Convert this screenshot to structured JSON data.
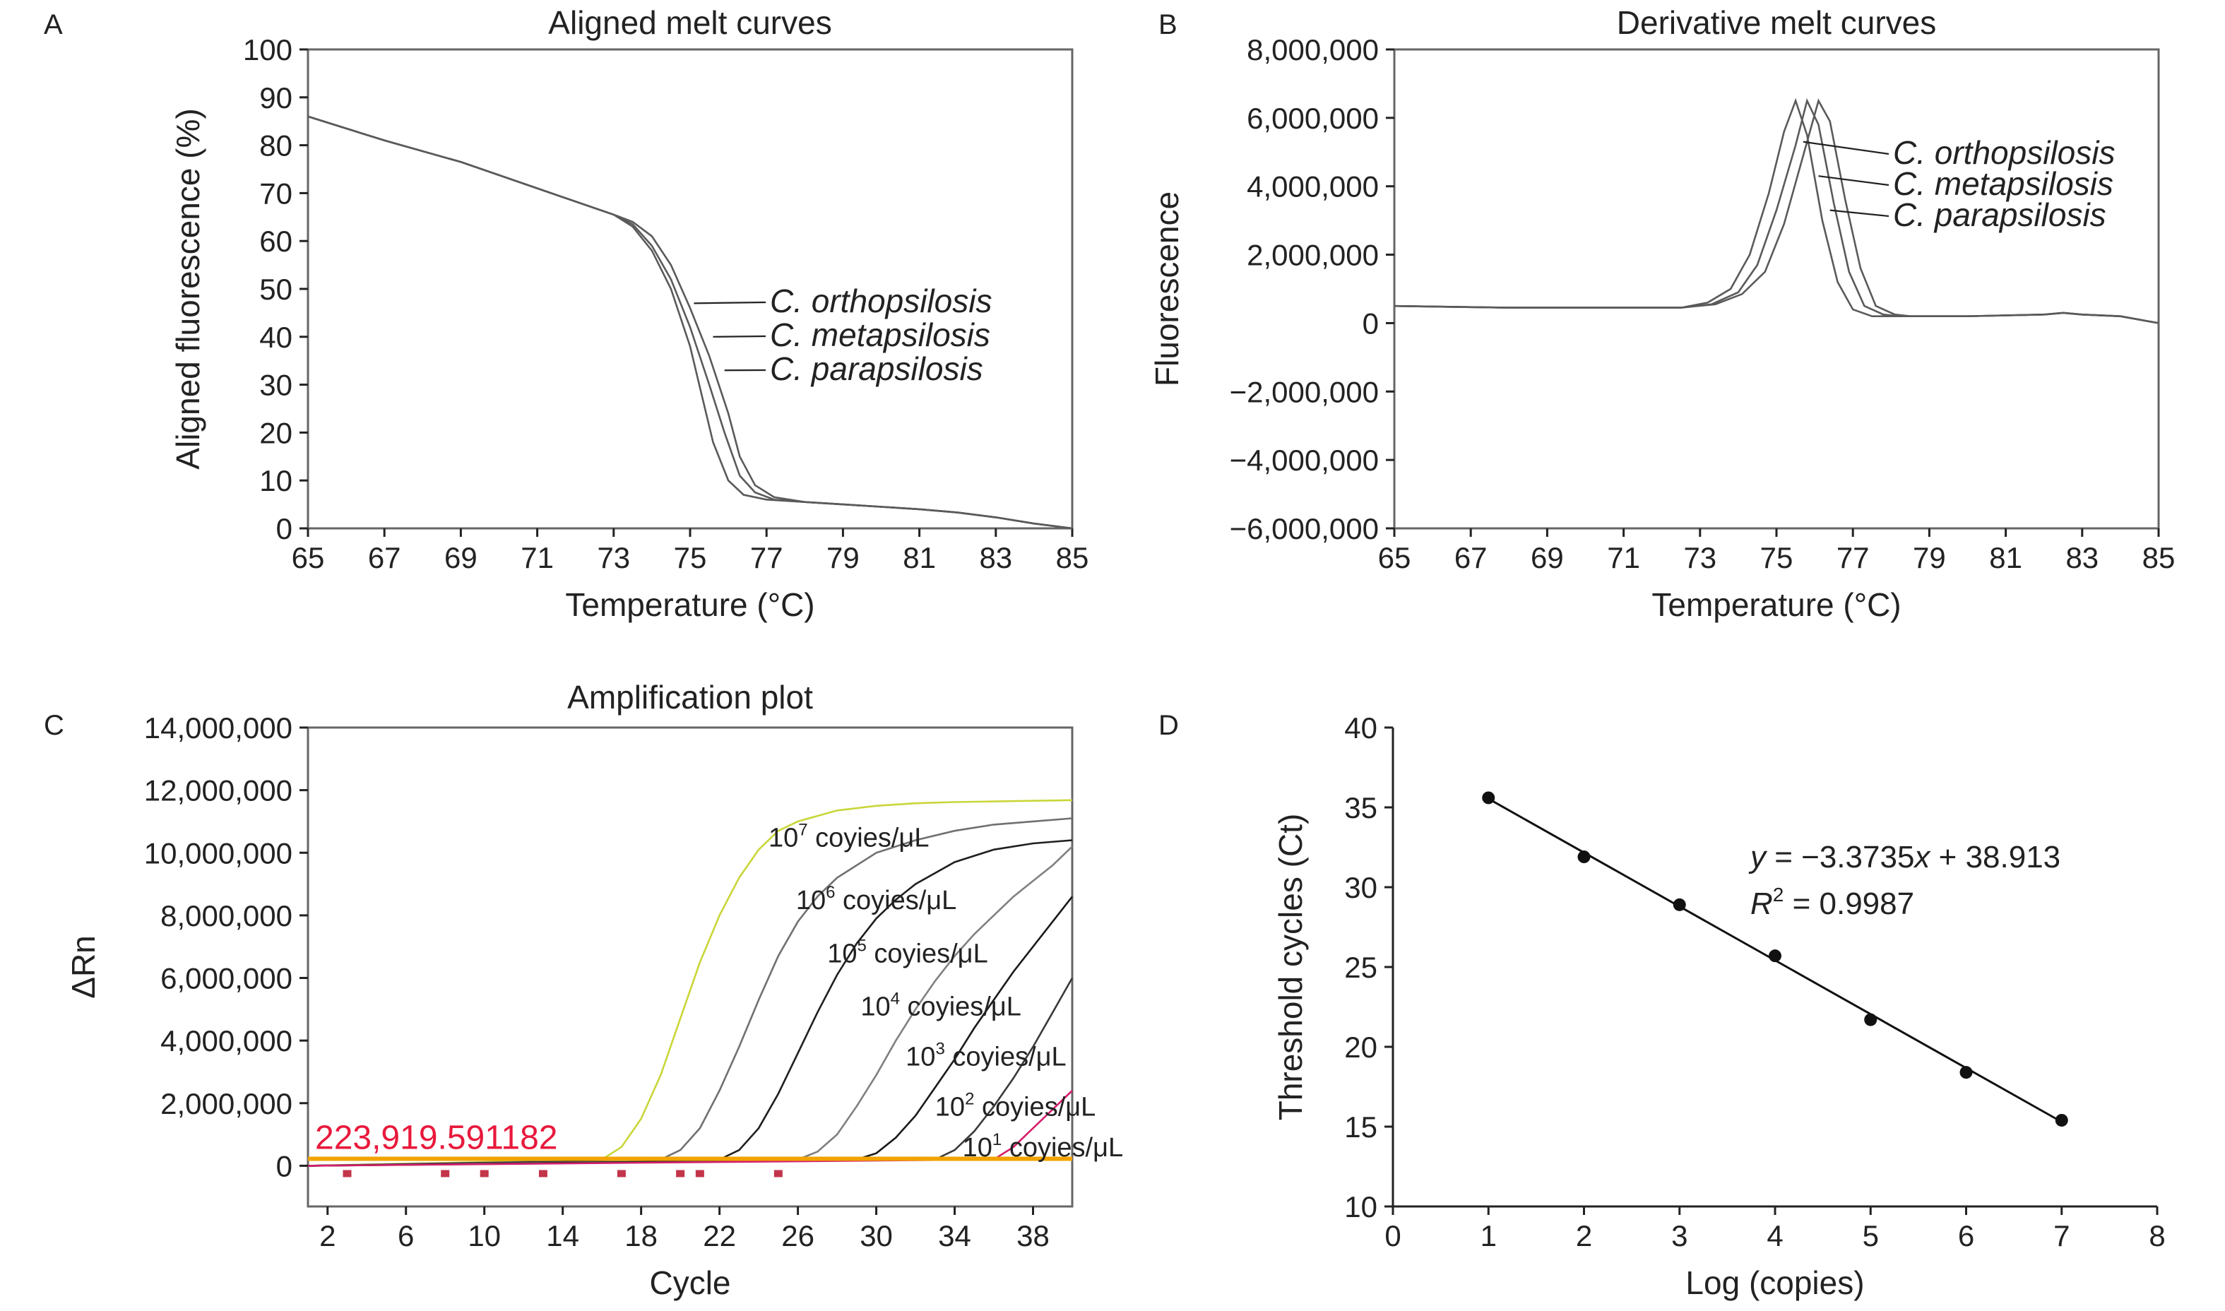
{
  "figure": {
    "panels": [
      {
        "letter": "A"
      },
      {
        "letter": "B"
      },
      {
        "letter": "C"
      },
      {
        "letter": "D"
      }
    ]
  },
  "chart_data": [
    {
      "panel": "A",
      "type": "line",
      "title": "Aligned melt curves",
      "xlabel": "Temperature (°C)",
      "ylabel": "Aligned fluorescence (%)",
      "xlim": [
        65,
        85
      ],
      "ylim": [
        0,
        100
      ],
      "xticks": [
        65,
        67,
        69,
        71,
        73,
        75,
        77,
        79,
        81,
        83,
        85
      ],
      "yticks": [
        0,
        10,
        20,
        30,
        40,
        50,
        60,
        70,
        80,
        90,
        100
      ],
      "grid": false,
      "line_color": "#5a5a5a",
      "series": [
        {
          "name": "C. orthopsilosis",
          "x": [
            65,
            67,
            69,
            71,
            73,
            73.5,
            74,
            74.5,
            75,
            75.3,
            75.6,
            76,
            76.4,
            77,
            78,
            79,
            80,
            81,
            82,
            83,
            84,
            85
          ],
          "y": [
            86,
            81,
            76.5,
            71,
            65.5,
            63,
            58,
            50,
            38,
            28,
            18,
            10,
            7,
            6,
            5.5,
            5,
            4.5,
            4,
            3.3,
            2.3,
            1,
            0
          ]
        },
        {
          "name": "C. metapsilosis",
          "x": [
            65,
            67,
            69,
            71,
            73,
            73.5,
            74,
            74.5,
            75,
            75.5,
            75.9,
            76.3,
            76.7,
            77.2,
            78,
            79,
            80,
            81,
            82,
            83,
            84,
            85
          ],
          "y": [
            86,
            81,
            76.5,
            71,
            65.5,
            63.5,
            59,
            52,
            42,
            30,
            20,
            11,
            7.5,
            6,
            5.5,
            5,
            4.5,
            4,
            3.3,
            2.3,
            1,
            0
          ]
        },
        {
          "name": "C. parapsilosis",
          "x": [
            65,
            67,
            69,
            71,
            73,
            73.5,
            74,
            74.5,
            75,
            75.5,
            76,
            76.3,
            76.7,
            77.2,
            78,
            79,
            80,
            81,
            82,
            83,
            84,
            85
          ],
          "y": [
            86,
            81,
            76.5,
            71,
            65.5,
            64,
            61,
            55,
            46,
            36,
            24,
            15,
            9,
            6.5,
            5.5,
            5,
            4.5,
            4,
            3.3,
            2.3,
            1,
            0
          ]
        }
      ],
      "annotations": [
        {
          "text": "C. orthopsilosis",
          "x": 75.1,
          "y": 47
        },
        {
          "text": "C. metapsilosis",
          "x": 75.6,
          "y": 40
        },
        {
          "text": "C. parapsilosis",
          "x": 75.9,
          "y": 33
        }
      ]
    },
    {
      "panel": "B",
      "type": "line",
      "title": "Derivative melt curves",
      "xlabel": "Temperature (°C)",
      "ylabel": "Fluorescence",
      "xlim": [
        65,
        85
      ],
      "ylim": [
        -6000000,
        8000000
      ],
      "xticks": [
        65,
        67,
        69,
        71,
        73,
        75,
        77,
        79,
        81,
        83,
        85
      ],
      "xtick_labels": [
        "65",
        "67",
        "69",
        "71",
        "73",
        "75",
        "77",
        "79",
        "81",
        "83",
        "85"
      ],
      "yticks": [
        -6000000,
        -4000000,
        -2000000,
        0,
        2000000,
        4000000,
        6000000,
        8000000
      ],
      "ytick_labels": [
        "−6,000,000",
        "−4,000,000",
        "−2,000,000",
        "0",
        "2,000,000",
        "4,000,000",
        "6,000,000",
        "8,000,000"
      ],
      "grid": false,
      "line_color": "#5a5a5a",
      "series": [
        {
          "name": "C. orthopsilosis",
          "x": [
            65,
            68,
            71,
            72.5,
            73.2,
            73.8,
            74.3,
            74.8,
            75.2,
            75.5,
            75.8,
            76.2,
            76.6,
            77,
            77.5,
            78,
            80,
            82,
            82.5,
            83,
            84,
            85
          ],
          "y": [
            500000,
            450000,
            450000,
            450000,
            600000,
            1000000,
            2000000,
            3800000,
            5600000,
            6500000,
            5500000,
            3000000,
            1200000,
            400000,
            200000,
            200000,
            200000,
            250000,
            300000,
            250000,
            200000,
            0
          ]
        },
        {
          "name": "C. metapsilosis",
          "x": [
            65,
            68,
            71,
            72.5,
            73.3,
            74,
            74.5,
            75,
            75.5,
            75.8,
            76.1,
            76.5,
            76.9,
            77.3,
            77.8,
            78.2,
            80,
            82,
            82.5,
            83,
            84,
            85
          ],
          "y": [
            500000,
            450000,
            450000,
            450000,
            550000,
            900000,
            1700000,
            3300000,
            5200000,
            6500000,
            5800000,
            3500000,
            1500000,
            500000,
            250000,
            200000,
            200000,
            250000,
            300000,
            250000,
            200000,
            0
          ]
        },
        {
          "name": "C. parapsilosis",
          "x": [
            65,
            68,
            71,
            72.5,
            73.4,
            74.1,
            74.7,
            75.2,
            75.7,
            76.1,
            76.4,
            76.8,
            77.2,
            77.6,
            78.1,
            78.5,
            80,
            82,
            82.5,
            83,
            84,
            85
          ],
          "y": [
            500000,
            450000,
            450000,
            450000,
            550000,
            850000,
            1500000,
            2900000,
            4900000,
            6500000,
            5900000,
            3600000,
            1600000,
            500000,
            250000,
            200000,
            200000,
            250000,
            300000,
            250000,
            200000,
            0
          ]
        }
      ],
      "annotations": [
        {
          "text": "C. orthopsilosis",
          "x": 75.7,
          "y": 5300000
        },
        {
          "text": "C. metapsilosis",
          "x": 76.1,
          "y": 4300000
        },
        {
          "text": "C. parapsilosis",
          "x": 76.4,
          "y": 3300000
        }
      ]
    },
    {
      "panel": "C",
      "type": "line",
      "title": "Amplification plot",
      "xlabel": "Cycle",
      "ylabel": "ΔRn",
      "xlim": [
        1,
        40
      ],
      "ylim": [
        -1300000,
        14000000
      ],
      "xticks": [
        2,
        6,
        10,
        14,
        18,
        22,
        26,
        30,
        34,
        38
      ],
      "yticks": [
        0,
        2000000,
        4000000,
        6000000,
        8000000,
        10000000,
        12000000,
        14000000
      ],
      "ytick_labels": [
        "0",
        "2,000,000",
        "4,000,000",
        "6,000,000",
        "8,000,000",
        "10,000,000",
        "12,000,000",
        "14,000,000"
      ],
      "grid": false,
      "threshold": {
        "value": 223919.591182,
        "label": "223,919.591182",
        "color": "#f2a300",
        "label_color": "#e8193c"
      },
      "baseline_markers_x": [
        3,
        8,
        10,
        13,
        17,
        20,
        21,
        25
      ],
      "series": [
        {
          "name": "10^7 coyies/μL",
          "color": "#c9d639",
          "x": [
            1,
            16,
            17,
            18,
            19,
            20,
            21,
            22,
            23,
            24,
            25,
            26,
            28,
            30,
            32,
            34,
            36,
            38,
            40
          ],
          "y": [
            0,
            200000,
            600000,
            1500000,
            2900000,
            4700000,
            6500000,
            8000000,
            9200000,
            10100000,
            10700000,
            11000000,
            11350000,
            11500000,
            11580000,
            11620000,
            11640000,
            11660000,
            11680000
          ]
        },
        {
          "name": "10^6 coyies/μL",
          "color": "#707070",
          "x": [
            1,
            19,
            20,
            21,
            22,
            23,
            24,
            25,
            26,
            27,
            28,
            30,
            32,
            34,
            36,
            38,
            40
          ],
          "y": [
            0,
            200000,
            500000,
            1200000,
            2400000,
            3800000,
            5300000,
            6700000,
            7800000,
            8600000,
            9200000,
            10000000,
            10400000,
            10700000,
            10900000,
            11000000,
            11100000
          ]
        },
        {
          "name": "10^5 coyies/μL",
          "color": "#1f1f1f",
          "x": [
            1,
            22,
            23,
            24,
            25,
            26,
            27,
            28,
            29,
            30,
            31,
            32,
            34,
            36,
            38,
            40
          ],
          "y": [
            0,
            200000,
            500000,
            1200000,
            2300000,
            3600000,
            4900000,
            6100000,
            7100000,
            7900000,
            8500000,
            9000000,
            9700000,
            10100000,
            10300000,
            10400000
          ]
        },
        {
          "name": "10^4 coyies/μL",
          "color": "#808080",
          "x": [
            1,
            26,
            27,
            28,
            29,
            30,
            31,
            32,
            33,
            34,
            35,
            36,
            37,
            38,
            39,
            40
          ],
          "y": [
            0,
            200000,
            450000,
            1000000,
            1900000,
            2900000,
            4000000,
            5000000,
            5900000,
            6700000,
            7400000,
            8000000,
            8600000,
            9100000,
            9600000,
            10200000
          ]
        },
        {
          "name": "10^3 coyies/μL",
          "color": "#1a1a1a",
          "x": [
            1,
            29,
            30,
            31,
            32,
            33,
            34,
            35,
            36,
            37,
            38,
            39,
            40
          ],
          "y": [
            0,
            200000,
            400000,
            900000,
            1600000,
            2500000,
            3400000,
            4400000,
            5300000,
            6200000,
            7000000,
            7800000,
            8600000
          ]
        },
        {
          "name": "10^2 coyies/μL",
          "color": "#3a3a3a",
          "x": [
            1,
            33,
            34,
            35,
            36,
            37,
            38,
            39,
            40
          ],
          "y": [
            0,
            200000,
            500000,
            1100000,
            1900000,
            2800000,
            3800000,
            4900000,
            6000000
          ]
        },
        {
          "name": "10^1 coyies/μL",
          "color": "#d41f6b",
          "x": [
            1,
            36,
            37,
            38,
            39,
            40
          ],
          "y": [
            0,
            200000,
            600000,
            1200000,
            1800000,
            2400000
          ]
        }
      ],
      "labels": [
        {
          "base": "10",
          "exp": "7",
          "unit": " coyies/μL",
          "x": 28.6,
          "y": 10200000
        },
        {
          "base": "10",
          "exp": "6",
          "unit": " coyies/μL",
          "x": 30,
          "y": 8200000
        },
        {
          "base": "10",
          "exp": "5",
          "unit": " coyies/μL",
          "x": 31.6,
          "y": 6500000
        },
        {
          "base": "10",
          "exp": "4",
          "unit": " coyies/μL",
          "x": 33.3,
          "y": 4800000
        },
        {
          "base": "10",
          "exp": "3",
          "unit": " coyies/μL",
          "x": 35.6,
          "y": 3200000
        },
        {
          "base": "10",
          "exp": "2",
          "unit": " coyies/μL",
          "x": 37.1,
          "y": 1600000
        },
        {
          "base": "10",
          "exp": "1",
          "unit": " coyies/μL",
          "x": 38.5,
          "y": 300000
        }
      ]
    },
    {
      "panel": "D",
      "type": "scatter",
      "xlabel": "Log (copies)",
      "ylabel": "Threshold cycles (Ct)",
      "xlim": [
        0,
        8
      ],
      "ylim": [
        10,
        40
      ],
      "xticks": [
        0,
        1,
        2,
        3,
        4,
        5,
        6,
        7,
        8
      ],
      "yticks": [
        10,
        15,
        20,
        25,
        30,
        35,
        40
      ],
      "grid": false,
      "x": [
        1,
        2,
        3,
        4,
        5,
        6,
        7
      ],
      "y": [
        35.6,
        31.9,
        28.9,
        25.7,
        21.7,
        18.4,
        15.4
      ],
      "fit": {
        "slope": -3.3735,
        "intercept": 38.913,
        "r2": 0.9987
      },
      "equation": {
        "y": "y",
        "rhs_1": " = −3.3735",
        "x": "x",
        "rhs_2": " + 38.913"
      },
      "r2_text": {
        "r": "R",
        "exp": "2",
        "rhs": " = 0.9987"
      }
    }
  ]
}
